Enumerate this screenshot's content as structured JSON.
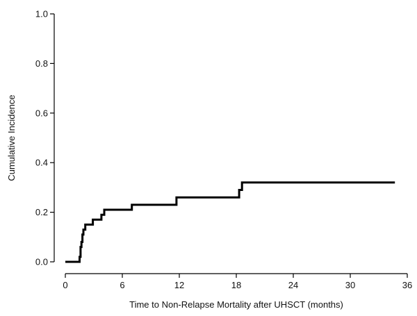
{
  "chart_data": {
    "type": "line",
    "title": "",
    "xlabel": "Time to Non-Relapse Mortality after UHSCT (months)",
    "ylabel": "Cumulative Incidence",
    "xlim": [
      0,
      36
    ],
    "ylim": [
      0,
      1.0
    ],
    "xticks": [
      0,
      6,
      12,
      18,
      24,
      30,
      36
    ],
    "xtick_labels": [
      "0",
      "6",
      "12",
      "18",
      "24",
      "30",
      "36"
    ],
    "yticks": [
      0.0,
      0.2,
      0.4,
      0.6,
      0.8,
      1.0
    ],
    "ytick_labels": [
      "0.0",
      "0.2",
      "0.4",
      "0.6",
      "0.8",
      "1.0"
    ],
    "grid": false,
    "step": true,
    "series": [
      {
        "x": [
          0,
          1.5,
          1.6,
          1.7,
          1.8,
          1.9,
          2.1,
          2.5,
          2.9,
          3.8,
          4.1,
          7.0,
          11.7,
          18.3,
          18.6,
          34.7
        ],
        "y": [
          0.0,
          0.02,
          0.06,
          0.08,
          0.11,
          0.13,
          0.15,
          0.15,
          0.17,
          0.19,
          0.21,
          0.23,
          0.26,
          0.29,
          0.32,
          0.32
        ]
      }
    ]
  }
}
